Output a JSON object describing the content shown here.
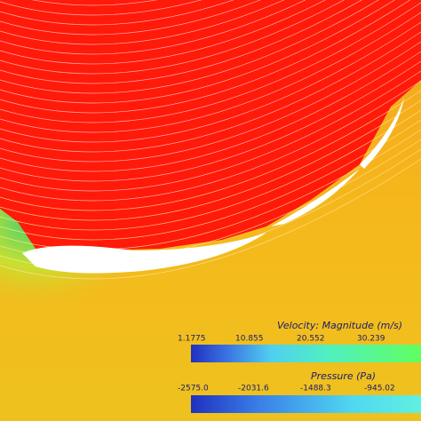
{
  "legend": {
    "velocity": {
      "title": "Velocity: Magnitude (m/s)",
      "ticks": [
        "1.1775",
        "10.855",
        "20.552",
        "30.239"
      ]
    },
    "pressure": {
      "title": "Pressure (Pa)",
      "ticks": [
        "-2575.0",
        "-2031.6",
        "-1488.3",
        "-945.02"
      ]
    }
  }
}
